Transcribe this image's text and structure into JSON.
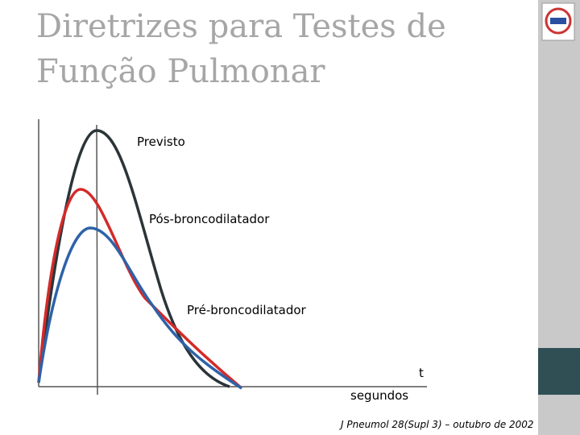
{
  "header": {
    "title_lines": [
      "Diretrizes para Testes de",
      "Função Pulmonar"
    ]
  },
  "diagram": {
    "labels": {
      "predicted": "Previsto",
      "post": "Pós-broncodilatador",
      "pre": "Pré-broncodilatador"
    },
    "axis": {
      "x_symbol": "t",
      "x_unit": "segundos"
    }
  },
  "footer": {
    "citation": "J Pneumol 28(Supl 3) – outubro de 2002"
  }
}
